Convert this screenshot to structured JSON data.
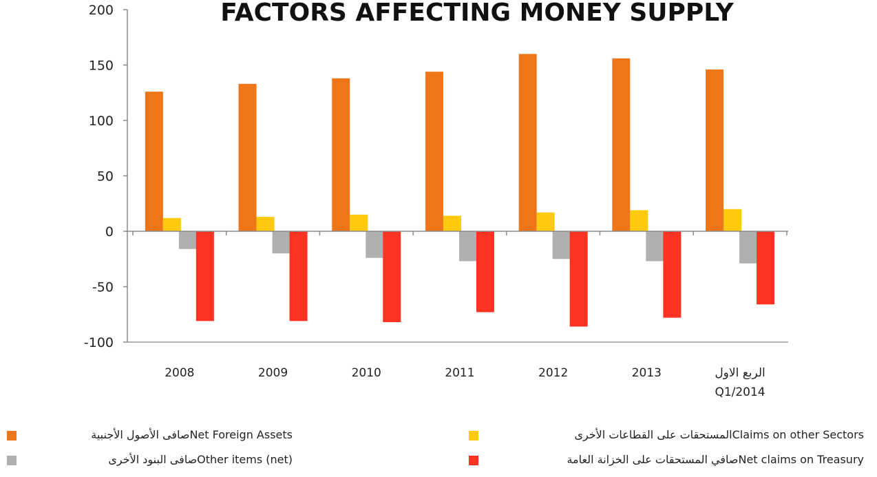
{
  "chart_data": {
    "type": "bar",
    "title": "FACTORS AFFECTING MONEY SUPPLY",
    "categories": [
      "2008",
      "2009",
      "2010",
      "2011",
      "2012",
      "2013",
      "الربع الاول\nQ1/2014"
    ],
    "series": [
      {
        "name": "Net Foreign Assetsصافى الأصول الأجنبية",
        "color": "#ee7518",
        "values": [
          126,
          133,
          138,
          144,
          160,
          156,
          146
        ]
      },
      {
        "name": "Claims on other Sectorsالمستحقات على القطاعات الأخرى",
        "color": "#ffc90e",
        "values": [
          12,
          13,
          15,
          14,
          17,
          19,
          20
        ]
      },
      {
        "name": "Other items (net)صافى البنود الأخرى",
        "color": "#b0b0b0",
        "values": [
          -16,
          -20,
          -24,
          -27,
          -25,
          -27,
          -29
        ]
      },
      {
        "name": "Net claims on Treasuryصافي المستحقات على الخزانة العامة",
        "color": "#ff3322",
        "values": [
          -81,
          -81,
          -82,
          -73,
          -86,
          -78,
          -66
        ]
      }
    ],
    "ylim": [
      -100,
      200
    ],
    "yticks": [
      -100,
      -50,
      0,
      50,
      100,
      150,
      200
    ]
  }
}
